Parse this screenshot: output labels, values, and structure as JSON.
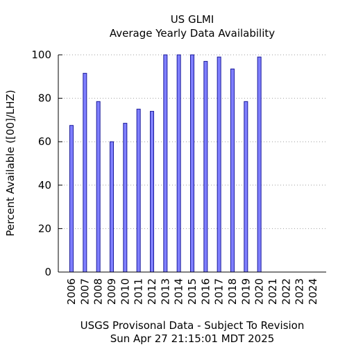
{
  "chart_data": {
    "type": "bar",
    "title": "US GLMI",
    "subtitle": "Average Yearly Data Availability",
    "ylabel": "Percent Available ([00]/LHZ)",
    "footer_lines": [
      "USGS Provisonal Data - Subject To Revision",
      "Sun Apr 27 21:15:01 MDT 2025"
    ],
    "categories": [
      "2006",
      "2007",
      "2008",
      "2009",
      "2010",
      "2011",
      "2012",
      "2013",
      "2014",
      "2015",
      "2016",
      "2017",
      "2018",
      "2019",
      "2020",
      "2021",
      "2022",
      "2023",
      "2024"
    ],
    "values": [
      67.5,
      91.5,
      78.5,
      60,
      68.5,
      75,
      74,
      100,
      100,
      100,
      97,
      99,
      93.5,
      78.5,
      99,
      0,
      0,
      0,
      0
    ],
    "ylim": [
      0,
      100
    ],
    "yticks": [
      0,
      20,
      40,
      60,
      80,
      100
    ],
    "grid": true,
    "colors": {
      "bar_fill": "#7f7fff",
      "bar_stroke": "#1a1a99",
      "grid": "#9e9e9e",
      "axis": "#000000"
    }
  }
}
